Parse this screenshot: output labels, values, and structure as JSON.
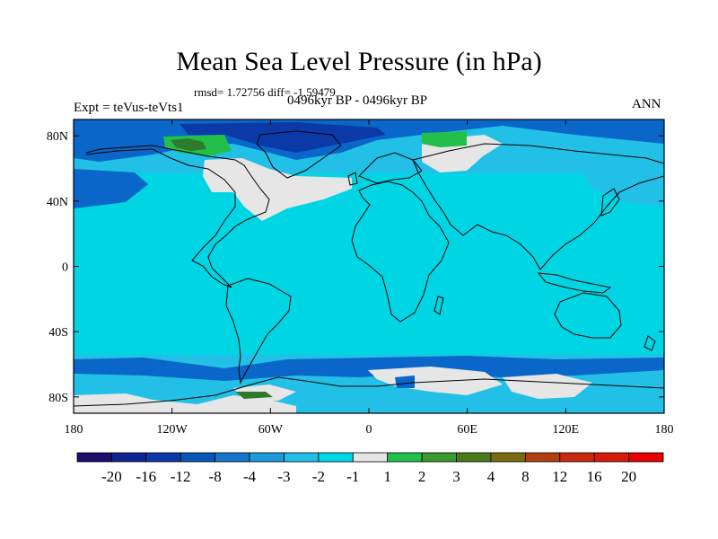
{
  "title": "Mean Sea Level Pressure (in hPa)",
  "stats": "rmsd= 1.72756 diff= -1.59479",
  "experiment": "Expt = teVus-teVts1",
  "period": "0496kyr BP - 0496kyr BP",
  "season": "ANN",
  "lat_labels": [
    "80N",
    "40N",
    "0",
    "40S",
    "80S"
  ],
  "lat_values": [
    80,
    40,
    0,
    -40,
    -80
  ],
  "lon_labels": [
    "180",
    "120W",
    "60W",
    "0",
    "60E",
    "120E",
    "180"
  ],
  "lon_values": [
    -180,
    -120,
    -60,
    0,
    60,
    120,
    180
  ],
  "colorbar": {
    "levels": [
      "-20",
      "-16",
      "-12",
      "-8",
      "-4",
      "-3",
      "-2",
      "-1",
      "1",
      "2",
      "3",
      "4",
      "8",
      "12",
      "16",
      "20"
    ],
    "colors": [
      "#1b0f6b",
      "#10248f",
      "#0b3aa8",
      "#0a55b8",
      "#1677c8",
      "#1e9ad8",
      "#22c0e6",
      "#00d8e8",
      "#e6e6e6",
      "#22c04a",
      "#3a9a30",
      "#4a7a1a",
      "#7a6a10",
      "#b04010",
      "#c82a10",
      "#d81a0a",
      "#e60000"
    ]
  },
  "map_colors": {
    "ocean_bg": "#00d5e3",
    "band": "#22c0e6",
    "deep": "#0a66c8",
    "deeper": "#0b3aa8",
    "near_zero": "#e6e6e6",
    "green": "#22c04a",
    "dark_green": "#2f7a2a",
    "coast": "#000000"
  }
}
